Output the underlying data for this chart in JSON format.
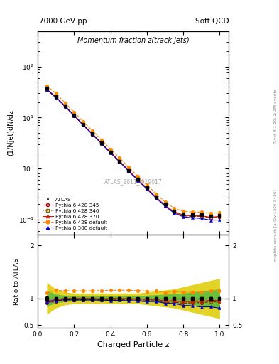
{
  "title_top_left": "7000 GeV pp",
  "title_top_right": "Soft QCD",
  "main_title": "Momentum fraction z(track jets)",
  "ylabel_main": "(1/Njet)dN/dz",
  "ylabel_ratio": "Ratio to ATLAS",
  "xlabel": "Charged Particle z",
  "watermark": "ATLAS_2011_I919017",
  "right_label": "Rivet 3.1.10, ≥ 2M events",
  "right_label2": "mcplots.cern.ch [arXiv:1306.3436]",
  "xlim": [
    0.0,
    1.05
  ],
  "ylim_main": [
    0.05,
    500
  ],
  "ylim_ratio": [
    0.45,
    2.2
  ],
  "x_data": [
    0.05,
    0.1,
    0.15,
    0.2,
    0.25,
    0.3,
    0.35,
    0.4,
    0.45,
    0.5,
    0.55,
    0.6,
    0.65,
    0.7,
    0.75,
    0.8,
    0.85,
    0.9,
    0.95,
    1.0
  ],
  "atlas_y": [
    38,
    26,
    17,
    11.2,
    7.3,
    4.85,
    3.2,
    2.1,
    1.4,
    0.92,
    0.62,
    0.42,
    0.28,
    0.2,
    0.148,
    0.13,
    0.125,
    0.125,
    0.115,
    0.12
  ],
  "atlas_yerr": [
    1.5,
    0.8,
    0.5,
    0.3,
    0.2,
    0.12,
    0.08,
    0.05,
    0.03,
    0.015,
    0.01,
    0.007,
    0.005,
    0.004,
    0.003,
    0.003,
    0.003,
    0.003,
    0.003,
    0.003
  ],
  "py6_345_y": [
    35,
    24.5,
    16.5,
    10.9,
    7.1,
    4.72,
    3.12,
    2.05,
    1.37,
    0.9,
    0.6,
    0.4,
    0.27,
    0.185,
    0.138,
    0.118,
    0.115,
    0.115,
    0.108,
    0.112
  ],
  "py6_346_y": [
    35.5,
    25.0,
    16.8,
    11.0,
    7.2,
    4.78,
    3.15,
    2.07,
    1.38,
    0.91,
    0.605,
    0.405,
    0.272,
    0.188,
    0.14,
    0.12,
    0.116,
    0.116,
    0.109,
    0.113
  ],
  "py6_370_y": [
    36,
    25.5,
    17.0,
    11.2,
    7.3,
    4.85,
    3.18,
    2.1,
    1.4,
    0.915,
    0.615,
    0.412,
    0.275,
    0.19,
    0.142,
    0.122,
    0.118,
    0.118,
    0.111,
    0.115
  ],
  "py6_def_y": [
    42,
    30,
    19.5,
    12.8,
    8.35,
    5.55,
    3.68,
    2.42,
    1.62,
    1.06,
    0.712,
    0.478,
    0.32,
    0.222,
    0.167,
    0.145,
    0.14,
    0.14,
    0.132,
    0.137
  ],
  "py8_def_y": [
    35.5,
    25.0,
    16.6,
    10.9,
    7.1,
    4.72,
    3.1,
    2.02,
    1.35,
    0.88,
    0.59,
    0.395,
    0.265,
    0.182,
    0.134,
    0.113,
    0.108,
    0.105,
    0.097,
    0.098
  ],
  "ratio_atlas_err_green": [
    0.15,
    0.08,
    0.06,
    0.05,
    0.05,
    0.05,
    0.05,
    0.05,
    0.05,
    0.05,
    0.05,
    0.06,
    0.07,
    0.08,
    0.09,
    0.1,
    0.12,
    0.14,
    0.16,
    0.18
  ],
  "ratio_atlas_err_yellow": [
    0.3,
    0.18,
    0.12,
    0.1,
    0.1,
    0.1,
    0.1,
    0.1,
    0.1,
    0.1,
    0.1,
    0.12,
    0.14,
    0.16,
    0.18,
    0.22,
    0.26,
    0.3,
    0.34,
    0.38
  ],
  "color_atlas": "#000000",
  "color_py6_345": "#aa0000",
  "color_py6_346": "#886600",
  "color_py6_370": "#cc1100",
  "color_py6_def": "#ff8800",
  "color_py8_def": "#0000cc",
  "color_green_band": "#44bb44",
  "color_yellow_band": "#ddcc00",
  "legend_labels": [
    "ATLAS",
    "Pythia 6.428 345",
    "Pythia 6.428 346",
    "Pythia 6.428 370",
    "Pythia 6.428 default",
    "Pythia 8.308 default"
  ]
}
